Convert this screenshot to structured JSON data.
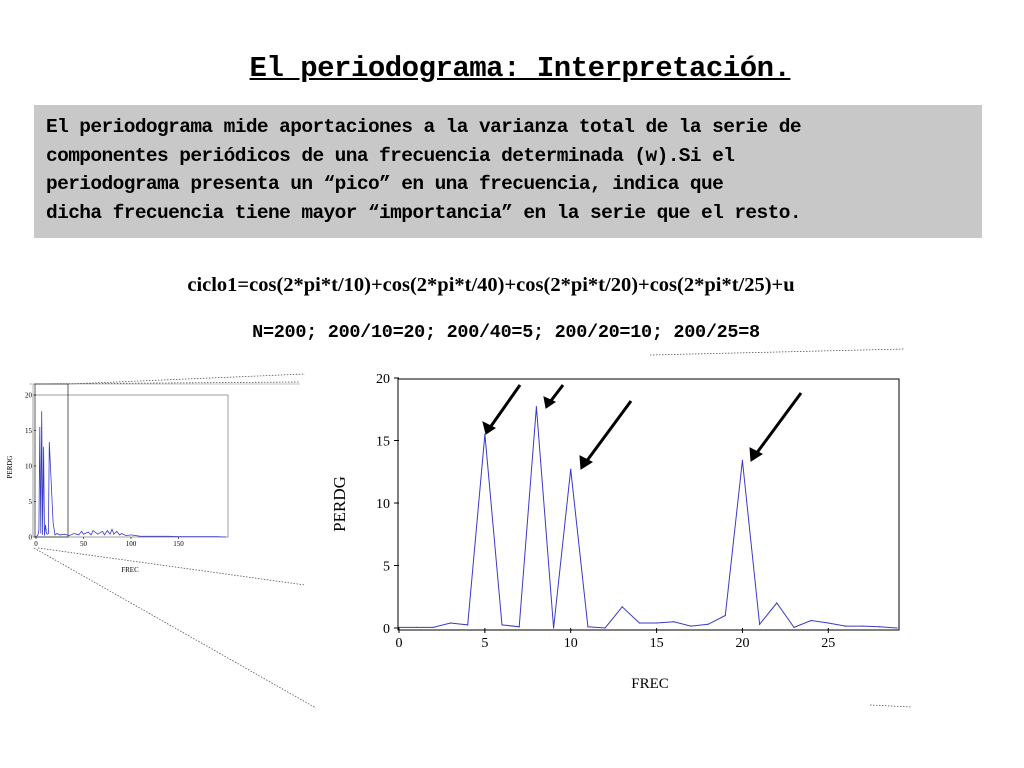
{
  "title": "El periodograma: Interpretación.",
  "description": [
    "El periodograma mide aportaciones a la varianza total de la serie de",
    "componentes periódicos de una frecuencia determinada (w).Si el",
    "periodograma presenta un “pico” en una frecuencia, indica que",
    "dicha frecuencia tiene mayor “importancia” en la serie que el resto."
  ],
  "formula": "ciclo1=cos(2*pi*t/10)+cos(2*pi*t/40)+cos(2*pi*t/20)+cos(2*pi*t/25)+u",
  "n_line": "N=200; 200/10=20; 200/40=5; 200/20=10; 200/25=8",
  "colors": {
    "series": "#3a3ac8",
    "box": "#c8c8c8"
  },
  "chart_data": [
    {
      "type": "line",
      "xlabel": "FREC",
      "ylabel": "PERDG",
      "xlim": [
        0,
        29
      ],
      "ylim": [
        0,
        20
      ],
      "x_ticks": [
        "0",
        "5",
        "10",
        "15",
        "20",
        "25"
      ],
      "y_ticks": [
        "0",
        "5",
        "10",
        "15",
        "20"
      ],
      "x": [
        0,
        1,
        2,
        3,
        4,
        5,
        6,
        7,
        8,
        9,
        10,
        11,
        12,
        13,
        14,
        15,
        16,
        17,
        18,
        19,
        20,
        21,
        22,
        23,
        24,
        25,
        26,
        27,
        28,
        29
      ],
      "y": [
        0.05,
        0.05,
        0.05,
        0.4,
        0.25,
        15.5,
        0.25,
        0.1,
        17.7,
        0.0,
        12.7,
        0.1,
        0.0,
        1.7,
        0.4,
        0.4,
        0.5,
        0.15,
        0.3,
        1.0,
        13.4,
        0.3,
        2.0,
        0.05,
        0.6,
        0.4,
        0.15,
        0.15,
        0.1,
        0.0
      ],
      "annotations": [
        "arrow at x=5",
        "arrow at x=8",
        "arrow at x=10",
        "arrow at x=20"
      ]
    },
    {
      "type": "line",
      "xlabel": "FREC",
      "ylabel": "PERDG",
      "xlim": [
        0,
        200
      ],
      "ylim": [
        0,
        20
      ],
      "x_ticks": [
        "0",
        "50",
        "100",
        "150"
      ],
      "y_ticks": [
        "0",
        "5",
        "10",
        "15",
        "20"
      ],
      "x": [
        0,
        2,
        3,
        4,
        5,
        6,
        7,
        8,
        9,
        10,
        11,
        12,
        13,
        14,
        18,
        20,
        22,
        25,
        30,
        35,
        40,
        45,
        48,
        50,
        55,
        58,
        60,
        65,
        70,
        72,
        75,
        78,
        80,
        82,
        85,
        88,
        90,
        95,
        100,
        110,
        120,
        130,
        140,
        150,
        160,
        170,
        180,
        190,
        200
      ],
      "y": [
        0,
        0.3,
        1,
        15.5,
        0.5,
        17.7,
        0.3,
        12.7,
        0.2,
        1.7,
        0.5,
        0.4,
        0.5,
        13.4,
        2,
        0.3,
        0.5,
        0.3,
        0.4,
        0.2,
        0.5,
        0.3,
        0.8,
        0.4,
        0.7,
        0.3,
        0.9,
        0.4,
        0.8,
        0.3,
        0.9,
        0.4,
        1.1,
        0.4,
        0.8,
        0.3,
        0.5,
        0.2,
        0.3,
        0.1,
        0.1,
        0.1,
        0.1,
        0.05,
        0.05,
        0.05,
        0.05,
        0.05,
        0
      ]
    }
  ]
}
